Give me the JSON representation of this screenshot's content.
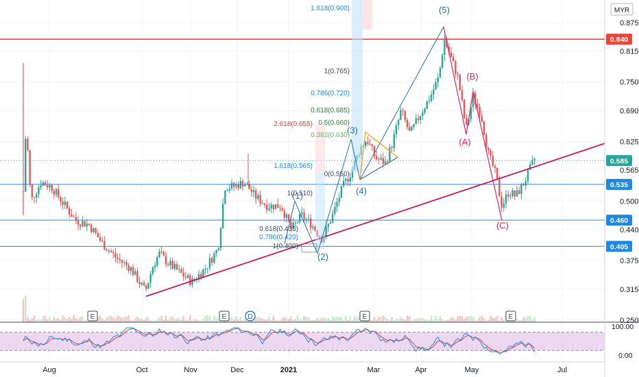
{
  "currency": "MYR",
  "colors": {
    "up": "#26a69a",
    "down": "#ef5350",
    "grid": "#f0f3fa",
    "trendline": "#c2185b",
    "resistance": "#f44336",
    "hline": "#1e88e5",
    "wave_blue": "#1e6fb0",
    "wave_pink": "#e91e63",
    "triangle": "#ff9800",
    "rsi_band": "#e1bee7",
    "rsi_line": "#1e88e5",
    "rsi_signal": "#e53935",
    "current": "#26a69a"
  },
  "chart_data": {
    "type": "candlestick",
    "y_axis_ticks": [
      "0.875",
      "0.815",
      "0.750",
      "0.690",
      "0.625",
      "0.565",
      "0.500",
      "0.440",
      "0.375",
      "0.315",
      "0.250"
    ],
    "ylim": [
      0.25,
      0.905
    ],
    "x_axis_ticks": [
      "Aug",
      "Oct",
      "Nov",
      "Dec",
      "2021",
      "Mar",
      "Apr",
      "May",
      "Jul"
    ],
    "price_labels": [
      {
        "value": 0.84,
        "label": "0.840",
        "kind": "resistance"
      },
      {
        "value": 0.585,
        "label": "0.585",
        "kind": "current"
      },
      {
        "value": 0.535,
        "label": "0.535",
        "kind": "level"
      },
      {
        "value": 0.46,
        "label": "0.460",
        "kind": "level"
      },
      {
        "value": 0.405,
        "label": "0.405",
        "kind": "level"
      }
    ],
    "horizontal_lines": [
      0.84,
      0.535,
      0.46,
      0.405
    ],
    "current_price": 0.585,
    "trendline": {
      "from": {
        "date": "Oct 2020",
        "price": 0.3
      },
      "to": {
        "date": "Jul 2021",
        "price": 0.62
      }
    },
    "wave_labels": [
      {
        "label": "(1)",
        "price": 0.5,
        "color": "blue"
      },
      {
        "label": "(2)",
        "price": 0.39,
        "color": "blue"
      },
      {
        "label": "(3)",
        "price": 0.64,
        "color": "blue"
      },
      {
        "label": "(4)",
        "price": 0.535,
        "color": "blue"
      },
      {
        "label": "(5)",
        "price": 0.87,
        "color": "blue"
      },
      {
        "label": "(A)",
        "price": 0.635,
        "color": "pink"
      },
      {
        "label": "(B)",
        "price": 0.745,
        "color": "pink"
      },
      {
        "label": "(C)",
        "price": 0.45,
        "color": "pink"
      }
    ],
    "fib_labels": [
      {
        "text": "1.618(0.900)",
        "color": "blue"
      },
      {
        "text": "1(0.765)",
        "color": "dark"
      },
      {
        "text": "0.786(0.720)",
        "color": "blue"
      },
      {
        "text": "0.618(0.685)",
        "color": "green"
      },
      {
        "text": "2.618(0.655)",
        "color": "red"
      },
      {
        "text": "0.5(0.660)",
        "color": "green"
      },
      {
        "text": "0.382(0.630)",
        "color": "lightgreen"
      },
      {
        "text": "1.618(0.565)",
        "color": "blue"
      },
      {
        "text": "0(0.550)",
        "color": "dark"
      },
      {
        "text": "1(0.510)",
        "color": "dark"
      },
      {
        "text": "0.618(0.435)",
        "color": "dark"
      },
      {
        "text": "0.786(0.420)",
        "color": "blue"
      },
      {
        "text": "1(0.400)",
        "color": "dark"
      }
    ],
    "event_markers": [
      "E",
      "E",
      "D",
      "E",
      "E"
    ],
    "rsi": {
      "ticks": [
        "100.00",
        "0.00"
      ],
      "upper": 80,
      "lower": 20
    }
  }
}
